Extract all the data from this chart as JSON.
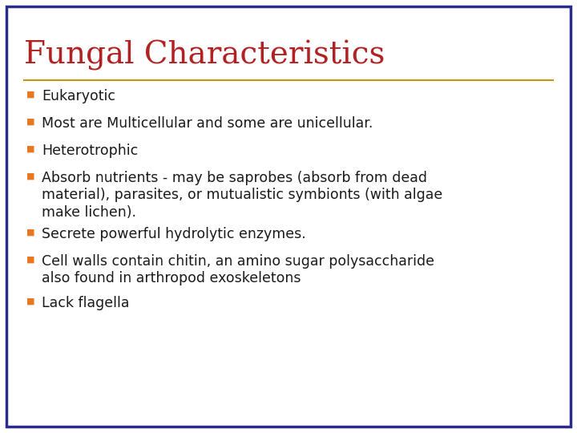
{
  "title": "Fungal Characteristics",
  "title_color": "#B22222",
  "title_fontsize": 28,
  "background_color": "#FFFFFF",
  "border_color": "#2B2B8C",
  "border_linewidth": 2.5,
  "divider_color": "#C8960C",
  "divider_linewidth": 1.5,
  "bullet_color": "#E87722",
  "bullet_char": "■",
  "text_color": "#1A1A1A",
  "text_fontsize": 12.5,
  "bullets": [
    "Eukaryotic",
    "Most are Multicellular and some are unicellular.",
    "Heterotrophic",
    "Absorb nutrients - may be saprobes (absorb from dead\nmaterial), parasites, or mutualistic symbionts (with algae\nmake lichen).",
    "Secrete powerful hydrolytic enzymes.",
    "Cell walls contain chitin, an amino sugar polysaccharide\nalso found in arthropod exoskeletons",
    "Lack flagella"
  ],
  "bullet_line_counts": [
    1,
    1,
    1,
    3,
    1,
    2,
    1
  ]
}
